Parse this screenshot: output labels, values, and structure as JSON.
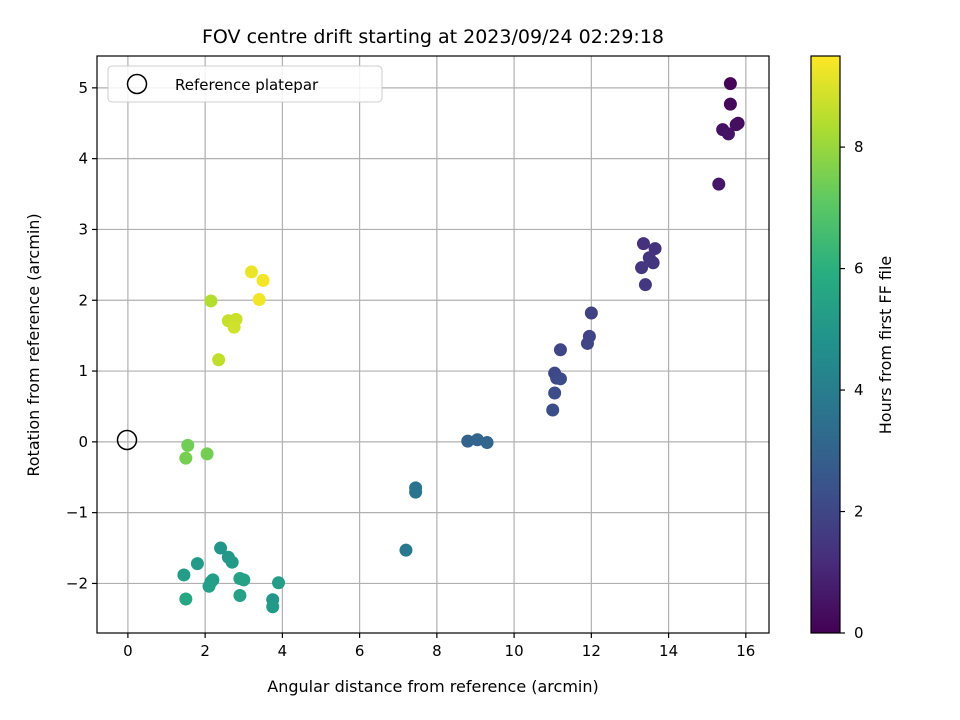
{
  "chart_data": {
    "type": "scatter",
    "title": "FOV centre drift starting at 2023/09/24 02:29:18",
    "xlabel": "Angular distance from reference (arcmin)",
    "ylabel": "Rotation from reference (arcmin)",
    "xlim": [
      -0.8,
      16.6
    ],
    "ylim": [
      -2.7,
      5.45
    ],
    "xticks": [
      0,
      2,
      4,
      6,
      8,
      10,
      12,
      14,
      16
    ],
    "yticks": [
      -2,
      -1,
      0,
      1,
      2,
      3,
      4,
      5
    ],
    "xtick_labels": [
      "0",
      "2",
      "4",
      "6",
      "8",
      "10",
      "12",
      "14",
      "16"
    ],
    "ytick_labels": [
      "−2",
      "−1",
      "0",
      "1",
      "2",
      "3",
      "4",
      "5"
    ],
    "grid": true,
    "legend": {
      "position": "top-left",
      "entries": [
        "Reference platepar"
      ]
    },
    "reference": {
      "x": 0,
      "y": 0
    },
    "colorbar": {
      "label": "Hours from first FF file",
      "colormap": "viridis",
      "range": [
        0,
        9.5
      ],
      "ticks": [
        0,
        2,
        4,
        6,
        8
      ],
      "tick_labels": [
        "0",
        "2",
        "4",
        "6",
        "8"
      ]
    },
    "points": [
      {
        "x": 15.6,
        "y": 5.06,
        "c": 0.1
      },
      {
        "x": 15.6,
        "y": 4.77,
        "c": 0.2
      },
      {
        "x": 15.8,
        "y": 4.5,
        "c": 0.3
      },
      {
        "x": 15.75,
        "y": 4.48,
        "c": 0.35
      },
      {
        "x": 15.4,
        "y": 4.41,
        "c": 0.45
      },
      {
        "x": 15.55,
        "y": 4.35,
        "c": 0.5
      },
      {
        "x": 15.3,
        "y": 3.64,
        "c": 0.6
      },
      {
        "x": 13.35,
        "y": 2.8,
        "c": 1.3
      },
      {
        "x": 13.65,
        "y": 2.73,
        "c": 1.35
      },
      {
        "x": 13.5,
        "y": 2.6,
        "c": 1.4
      },
      {
        "x": 13.6,
        "y": 2.53,
        "c": 1.45
      },
      {
        "x": 13.3,
        "y": 2.46,
        "c": 1.5
      },
      {
        "x": 13.4,
        "y": 2.22,
        "c": 1.55
      },
      {
        "x": 12.0,
        "y": 1.82,
        "c": 1.85
      },
      {
        "x": 11.95,
        "y": 1.49,
        "c": 1.9
      },
      {
        "x": 11.9,
        "y": 1.39,
        "c": 1.95
      },
      {
        "x": 11.2,
        "y": 1.3,
        "c": 2.0
      },
      {
        "x": 11.05,
        "y": 0.97,
        "c": 2.05
      },
      {
        "x": 11.1,
        "y": 0.9,
        "c": 2.1
      },
      {
        "x": 11.2,
        "y": 0.89,
        "c": 2.15
      },
      {
        "x": 11.05,
        "y": 0.69,
        "c": 2.2
      },
      {
        "x": 11.0,
        "y": 0.45,
        "c": 2.25
      },
      {
        "x": 8.8,
        "y": 0.01,
        "c": 3.0
      },
      {
        "x": 9.05,
        "y": 0.03,
        "c": 3.05
      },
      {
        "x": 9.3,
        "y": -0.01,
        "c": 3.1
      },
      {
        "x": 7.45,
        "y": -0.65,
        "c": 3.6
      },
      {
        "x": 7.45,
        "y": -0.71,
        "c": 3.65
      },
      {
        "x": 7.2,
        "y": -1.53,
        "c": 3.8
      },
      {
        "x": 2.4,
        "y": -1.5,
        "c": 5.0
      },
      {
        "x": 2.6,
        "y": -1.63,
        "c": 5.05
      },
      {
        "x": 2.7,
        "y": -1.7,
        "c": 5.1
      },
      {
        "x": 1.8,
        "y": -1.72,
        "c": 5.15
      },
      {
        "x": 1.45,
        "y": -1.88,
        "c": 5.2
      },
      {
        "x": 2.15,
        "y": -1.98,
        "c": 5.25
      },
      {
        "x": 2.2,
        "y": -1.95,
        "c": 5.3
      },
      {
        "x": 2.1,
        "y": -2.04,
        "c": 5.35
      },
      {
        "x": 2.9,
        "y": -1.93,
        "c": 5.4
      },
      {
        "x": 3.0,
        "y": -1.95,
        "c": 5.45
      },
      {
        "x": 3.9,
        "y": -1.99,
        "c": 5.2
      },
      {
        "x": 2.9,
        "y": -2.17,
        "c": 5.4
      },
      {
        "x": 1.5,
        "y": -2.22,
        "c": 5.6
      },
      {
        "x": 3.75,
        "y": -2.23,
        "c": 5.0
      },
      {
        "x": 3.75,
        "y": -2.33,
        "c": 5.1
      },
      {
        "x": 1.55,
        "y": -0.05,
        "c": 7.4
      },
      {
        "x": 1.5,
        "y": -0.23,
        "c": 7.5
      },
      {
        "x": 2.05,
        "y": -0.17,
        "c": 7.45
      },
      {
        "x": 2.15,
        "y": 1.99,
        "c": 8.4
      },
      {
        "x": 2.35,
        "y": 1.16,
        "c": 8.6
      },
      {
        "x": 2.6,
        "y": 1.71,
        "c": 8.7
      },
      {
        "x": 2.8,
        "y": 1.73,
        "c": 8.75
      },
      {
        "x": 2.75,
        "y": 1.62,
        "c": 8.8
      },
      {
        "x": 3.2,
        "y": 2.4,
        "c": 9.2
      },
      {
        "x": 3.4,
        "y": 2.01,
        "c": 9.3
      },
      {
        "x": 3.5,
        "y": 2.28,
        "c": 9.35
      }
    ]
  }
}
